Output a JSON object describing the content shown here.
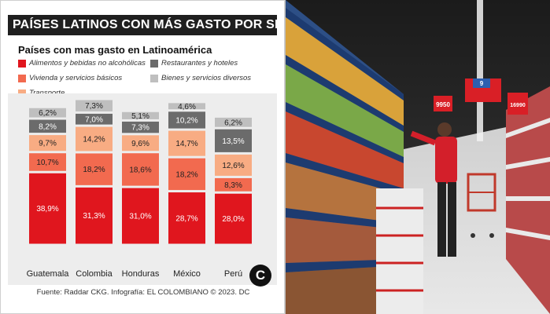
{
  "infographic": {
    "title": "PAÍSES LATINOS CON MÁS GASTO POR SECTOR",
    "subtitle": "Países con mas gasto en Latinoamérica",
    "source": "Fuente: Raddar CKG. Infografía: EL COLOMBIANO © 2023. DC",
    "logo_letter": "C"
  },
  "colors": {
    "alimentos": "#e0161e",
    "vivienda": "#f26a4f",
    "transporte": "#f8ac83",
    "restaurantes": "#6b6b6b",
    "bienes": "#bfbfbf"
  },
  "chart_data": {
    "type": "bar",
    "stacked": true,
    "title": "Países con mas gasto en Latinoamérica",
    "categories": [
      "Guatemala",
      "Colombia",
      "Honduras",
      "México",
      "Perú"
    ],
    "series": [
      {
        "name": "Alimentos y bebidas no alcohólicas",
        "color": "#e0161e",
        "values": [
          38.9,
          31.3,
          31.0,
          28.7,
          28.0
        ],
        "labels": [
          "38,9%",
          "31,3%",
          "31,0%",
          "28,7%",
          "28,0%"
        ]
      },
      {
        "name": "Vivienda y servicios básicos",
        "color": "#f26a4f",
        "values": [
          10.7,
          18.2,
          18.6,
          18.2,
          8.3
        ],
        "labels": [
          "10,7%",
          "18,2%",
          "18,6%",
          "18,2%",
          "8,3%"
        ]
      },
      {
        "name": "Transporte",
        "color": "#f8ac83",
        "values": [
          9.7,
          14.2,
          9.6,
          14.7,
          12.6
        ],
        "labels": [
          "9,7%",
          "14,2%",
          "9,6%",
          "14,7%",
          "12,6%"
        ]
      },
      {
        "name": "Restaurantes y hoteles",
        "color": "#6b6b6b",
        "values": [
          8.2,
          7.0,
          7.3,
          10.2,
          13.5
        ],
        "labels": [
          "8,2%",
          "7,0%",
          "7,3%",
          "10,2%",
          "13,5%"
        ]
      },
      {
        "name": "Bienes y servicios diversos",
        "color": "#bfbfbf",
        "values": [
          6.2,
          7.3,
          5.1,
          4.6,
          6.2
        ],
        "labels": [
          "6,2%",
          "7,3%",
          "5,1%",
          "4,6%",
          "6,2%"
        ]
      }
    ],
    "legend": [
      {
        "name": "Alimentos y bebidas no alcohólicas",
        "color": "#e0161e"
      },
      {
        "name": "Restaurantes y hoteles",
        "color": "#6b6b6b"
      },
      {
        "name": "Vivienda y servicios básicos",
        "color": "#f26a4f"
      },
      {
        "name": "Bienes y servicios diversos",
        "color": "#bfbfbf"
      },
      {
        "name": "Transporte",
        "color": "#f8ac83"
      }
    ],
    "legend_position": "top",
    "grid": false
  },
  "photo": {
    "description_icon": "supermarket-aisle-photo",
    "signs": [
      "9950",
      "9",
      "16990"
    ]
  }
}
